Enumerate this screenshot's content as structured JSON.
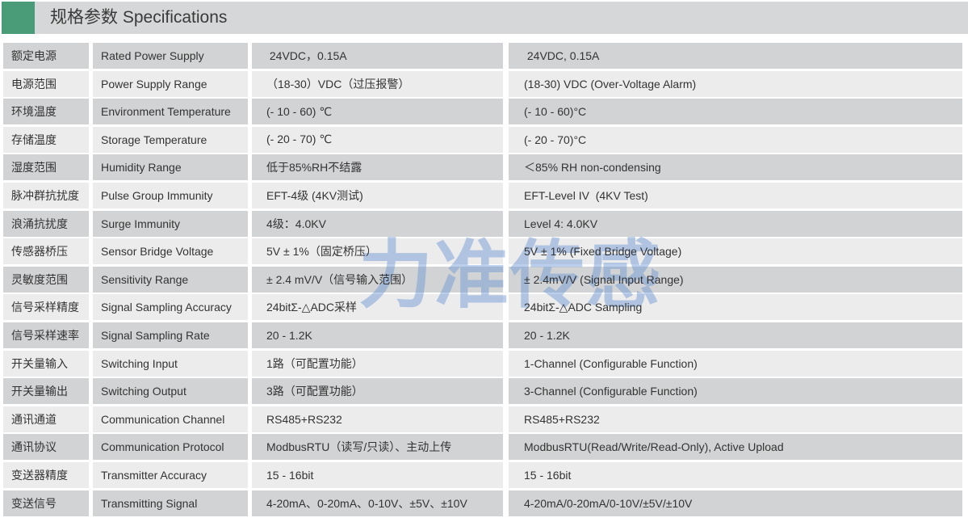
{
  "header": {
    "title": "规格参数 Specifications"
  },
  "watermark": {
    "text": "力准传感"
  },
  "colors": {
    "accent_green": "#4A9C78",
    "header_bar": "#D6D7D8",
    "row_dark": "#D2D3D4",
    "row_light": "#ECECEC",
    "watermark_blue": "#6894D4",
    "text": "#333333"
  },
  "table": {
    "rows": [
      {
        "zh_name": "额定电源",
        "en_name": "Rated Power Supply",
        "zh_value": " 24VDC，0.15A",
        "en_value": " 24VDC, 0.15A"
      },
      {
        "zh_name": "电源范围",
        "en_name": "Power Supply Range",
        "zh_value": "（18-30）VDC（过压报警）",
        "en_value": "(18-30) VDC (Over-Voltage Alarm)"
      },
      {
        "zh_name": "环境温度",
        "en_name": "Environment Temperature",
        "zh_value": "(- 10 - 60) ℃",
        "en_value": "(- 10 - 60)°C"
      },
      {
        "zh_name": "存储温度",
        "en_name": "Storage Temperature",
        "zh_value": "(- 20 - 70) ℃",
        "en_value": "(- 20 - 70)°C"
      },
      {
        "zh_name": "湿度范围",
        "en_name": "Humidity Range",
        "zh_value": "低于85%RH不结露",
        "en_value": "＜85% RH non-condensing"
      },
      {
        "zh_name": "脉冲群抗扰度",
        "en_name": "Pulse Group Immunity",
        "zh_value": "EFT-4级 (4KV测试)",
        "en_value": "EFT-Level IV  (4KV Test)"
      },
      {
        "zh_name": "浪涌抗扰度",
        "en_name": "Surge Immunity",
        "zh_value": "4级：4.0KV",
        "en_value": "Level 4: 4.0KV"
      },
      {
        "zh_name": "传感器桥压",
        "en_name": "Sensor Bridge Voltage",
        "zh_value": "5V ± 1%（固定桥压）",
        "en_value": "5V ± 1% (Fixed Bridge Voltage)"
      },
      {
        "zh_name": "灵敏度范围",
        "en_name": "Sensitivity Range",
        "zh_value": "± 2.4 mV/V（信号输入范围）",
        "en_value": "± 2.4mV/V (Signal Input Range)"
      },
      {
        "zh_name": "信号采样精度",
        "en_name": "Signal Sampling Accuracy",
        "zh_value": "24bitΣ-△ADC采样",
        "en_value": "24bitΣ-△ADC Sampling"
      },
      {
        "zh_name": "信号采样速率",
        "en_name": "Signal Sampling Rate",
        "zh_value": "20 - 1.2K",
        "en_value": "20 - 1.2K"
      },
      {
        "zh_name": "开关量输入",
        "en_name": "Switching Input",
        "zh_value": "1路（可配置功能）",
        "en_value": "1-Channel (Configurable Function)"
      },
      {
        "zh_name": "开关量输出",
        "en_name": "Switching Output",
        "zh_value": "3路（可配置功能）",
        "en_value": "3-Channel (Configurable Function)"
      },
      {
        "zh_name": "通讯通道",
        "en_name": "Communication Channel",
        "zh_value": "RS485+RS232",
        "en_value": "RS485+RS232"
      },
      {
        "zh_name": "通讯协议",
        "en_name": "Communication Protocol",
        "zh_value": "ModbusRTU（读写/只读）、主动上传",
        "en_value": "ModbusRTU(Read/Write/Read-Only), Active Upload"
      },
      {
        "zh_name": "变送器精度",
        "en_name": "Transmitter Accuracy",
        "zh_value": "15 - 16bit",
        "en_value": "15 - 16bit"
      },
      {
        "zh_name": "变送信号",
        "en_name": "Transmitting Signal",
        "zh_value": "4-20mA、0-20mA、0-10V、±5V、±10V",
        "en_value": "4-20mA/0-20mA/0-10V/±5V/±10V"
      }
    ]
  }
}
